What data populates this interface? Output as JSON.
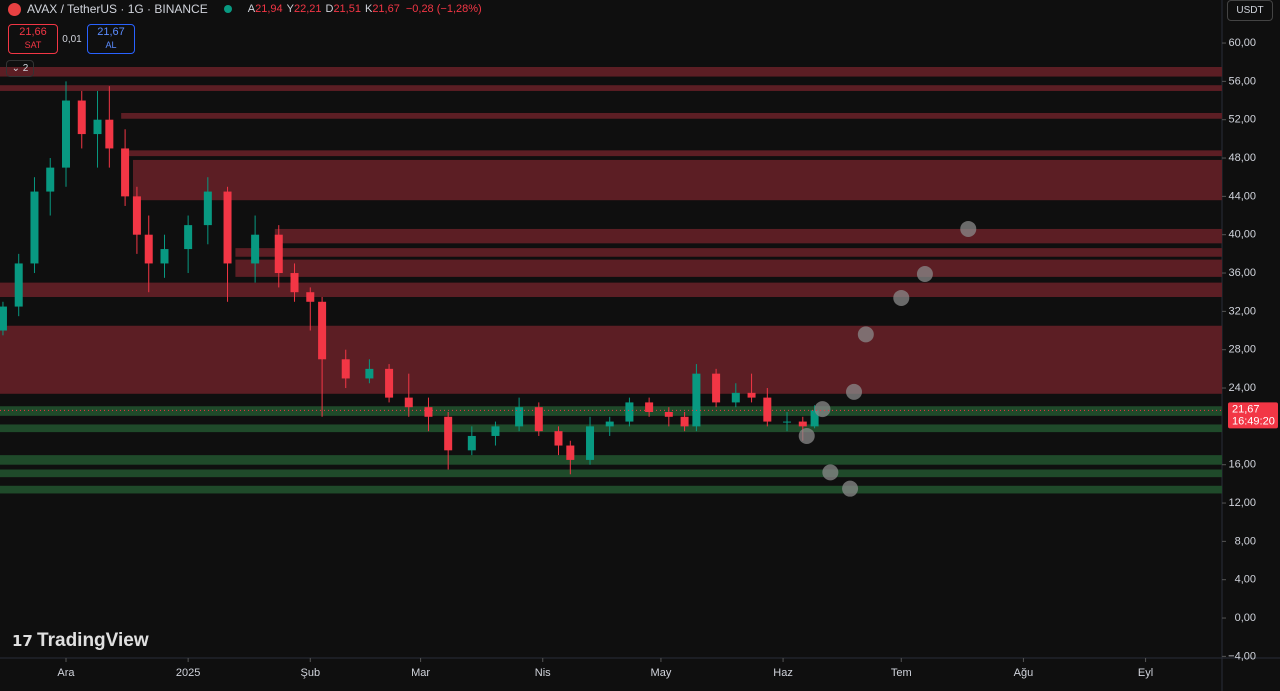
{
  "header": {
    "symbol": "AVAX / TetherUS · 1G · BINANCE",
    "ohlc": [
      {
        "k": "A",
        "v": "21,94"
      },
      {
        "k": "Y",
        "v": "22,21"
      },
      {
        "k": "D",
        "v": "21,51"
      },
      {
        "k": "K",
        "v": "21,67"
      }
    ],
    "change": "−0,28 (−1,28%)"
  },
  "trade": {
    "sell_price": "21,66",
    "sell": "SAT",
    "spread": "0,01",
    "buy_price": "21,67",
    "buy": "AL"
  },
  "indicators_toggle": "2",
  "currency": "USDT",
  "brand": "TradingView",
  "chart_data": {
    "type": "candlestick",
    "up_color": "#089981",
    "down_color": "#f23645",
    "x": [
      -16,
      -12,
      -8,
      -4,
      0,
      4,
      8,
      11,
      15,
      18,
      21,
      25,
      31,
      36,
      41,
      48,
      54,
      58,
      62,
      65,
      71,
      77,
      82,
      87,
      92,
      97,
      103,
      109,
      115,
      120,
      125,
      128,
      133,
      138,
      143,
      148,
      153,
      157,
      160,
      165,
      170,
      174,
      178,
      183,
      187,
      190
    ],
    "open": [
      30,
      32.5,
      37,
      44.5,
      47,
      54,
      50.5,
      52,
      49,
      44,
      40,
      37,
      38.5,
      41,
      44.5,
      37,
      40,
      36,
      34,
      33,
      27,
      25,
      26,
      23,
      22,
      21,
      17.5,
      19,
      20,
      22,
      19.5,
      18,
      16.5,
      20,
      20.5,
      22.5,
      21.5,
      21,
      20,
      25.5,
      22.5,
      23.5,
      23,
      20.5,
      20.5,
      20
    ],
    "high": [
      33,
      38,
      46,
      48,
      56,
      55,
      55,
      55.5,
      51,
      45,
      42,
      40,
      42,
      46,
      45,
      42,
      41,
      37,
      34.5,
      33.5,
      28,
      27,
      26.5,
      25.5,
      23,
      21.5,
      20,
      20.5,
      23,
      22.5,
      20,
      18.5,
      21,
      21,
      23,
      23,
      22,
      21.5,
      26.5,
      26,
      24.5,
      25.5,
      24,
      21.5,
      21,
      22.2
    ],
    "low": [
      29.5,
      31.5,
      36,
      42,
      45,
      49,
      47,
      47,
      43,
      38,
      34,
      35.5,
      36,
      39,
      33,
      35,
      34.5,
      33,
      30,
      21,
      24,
      24.5,
      22.5,
      21,
      19.5,
      15.5,
      17,
      18,
      19.5,
      19,
      17,
      15,
      16,
      19,
      20,
      21,
      20,
      19.5,
      19.5,
      22,
      22,
      22.5,
      20,
      19.5,
      18.5,
      19.8
    ],
    "close": [
      32.5,
      37,
      44.5,
      47,
      54,
      50.5,
      52,
      49,
      44,
      40,
      37,
      38.5,
      41,
      44.5,
      37,
      40,
      36,
      34,
      33,
      27,
      25,
      26,
      23,
      22,
      21,
      17.5,
      19,
      20,
      22,
      19.5,
      18,
      16.5,
      20,
      20.5,
      22.5,
      21.5,
      21,
      20,
      25.5,
      22.5,
      23.5,
      23,
      20.5,
      20.5,
      20,
      21.67
    ],
    "xlim": [
      -16.75,
      293.4
    ],
    "xticks": [
      {
        "value": 0,
        "label": "Ara"
      },
      {
        "value": 31,
        "label": "2025"
      },
      {
        "value": 62,
        "label": "Şub"
      },
      {
        "value": 90,
        "label": "Mar"
      },
      {
        "value": 121,
        "label": "Nis"
      },
      {
        "value": 151,
        "label": "May"
      },
      {
        "value": 182,
        "label": "Haz"
      },
      {
        "value": 212,
        "label": "Tem"
      },
      {
        "value": 243,
        "label": "Ağu"
      },
      {
        "value": 274,
        "label": "Eyl"
      }
    ],
    "ylim": [
      -4.17,
      64.49
    ],
    "yticks": [
      {
        "value": 60,
        "label": "60,00"
      },
      {
        "value": 56,
        "label": "56,00"
      },
      {
        "value": 52,
        "label": "52,00"
      },
      {
        "value": 48,
        "label": "48,00"
      },
      {
        "value": 44,
        "label": "44,00"
      },
      {
        "value": 40,
        "label": "40,00"
      },
      {
        "value": 36,
        "label": "36,00"
      },
      {
        "value": 32,
        "label": "32,00"
      },
      {
        "value": 28,
        "label": "28,00"
      },
      {
        "value": 24,
        "label": "24,00"
      },
      {
        "value": 16,
        "label": "16,00"
      },
      {
        "value": 12,
        "label": "12,00"
      },
      {
        "value": 8,
        "label": "8,00"
      },
      {
        "value": 4,
        "label": "4,00"
      },
      {
        "value": 0,
        "label": "0,00"
      },
      {
        "value": -4,
        "label": "−4,00"
      }
    ],
    "resistance_zones": {
      "color": "#5c1e24",
      "from_x": [
        -16.75,
        -16.75,
        14,
        16,
        17,
        53,
        43,
        43,
        -16.75,
        -16.75
      ],
      "top": [
        57.5,
        55.6,
        52.7,
        48.8,
        47.8,
        40.6,
        38.6,
        37.4,
        35,
        30.5
      ],
      "bottom": [
        56.5,
        55,
        52.1,
        48.2,
        43.6,
        39.1,
        37.7,
        35.6,
        33.5,
        23.4
      ]
    },
    "support_zones": {
      "color": "#1f4a2a",
      "top": [
        22.1,
        20.2,
        17,
        15.5,
        13.8
      ],
      "bottom": [
        21.1,
        19.4,
        16,
        14.7,
        13
      ]
    },
    "projection_points": {
      "color": "#8a8a8a",
      "x": [
        188,
        192,
        194,
        199,
        200,
        203,
        212,
        218,
        229
      ],
      "y": [
        19,
        21.8,
        15.2,
        13.5,
        23.6,
        29.6,
        33.4,
        35.9,
        40.6
      ]
    },
    "last": {
      "value": 21.67,
      "label": "21,67",
      "time": "16:49:20",
      "color": "#f23645"
    }
  }
}
